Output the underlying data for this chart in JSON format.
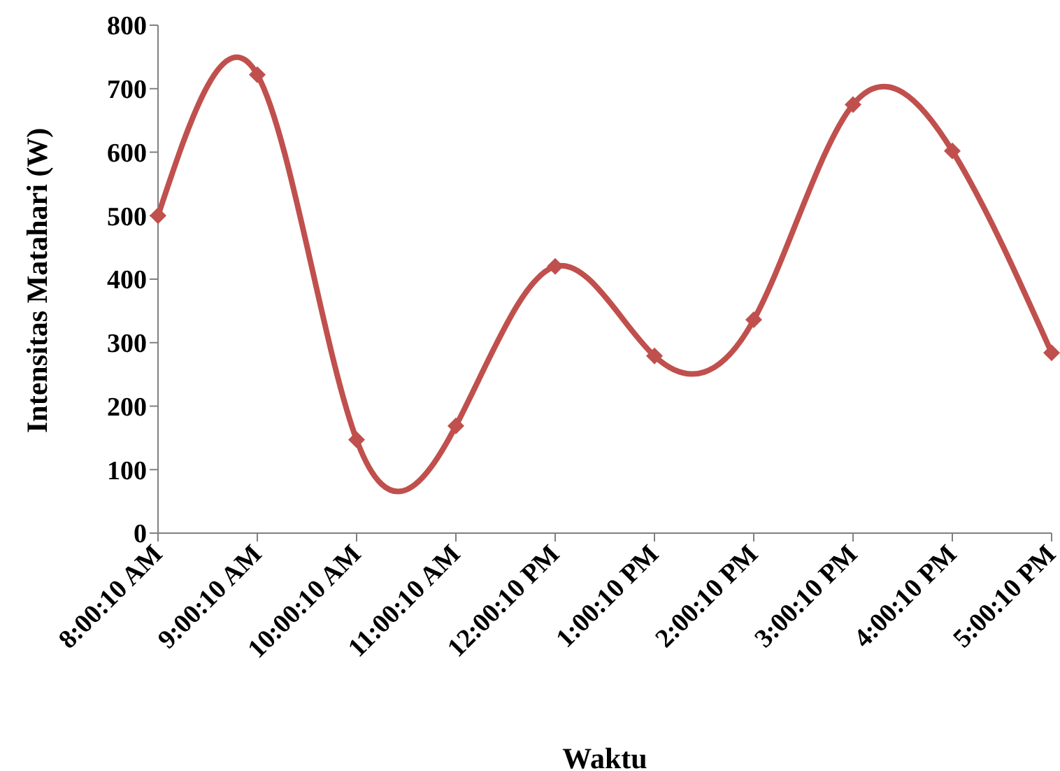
{
  "chart_data": {
    "type": "line",
    "xlabel": "Waktu",
    "ylabel": "Intensitas Matahari (W)",
    "categories": [
      "8:00:10 AM",
      "9:00:10 AM",
      "10:00:10 AM",
      "11:00:10 AM",
      "12:00:10 PM",
      "1:00:10 PM",
      "2:00:10 PM",
      "3:00:10 PM",
      "4:00:10 PM",
      "5:00:10 PM"
    ],
    "series": [
      {
        "color": "#c0504d",
        "values": [
          500,
          722,
          147,
          169,
          420,
          279,
          336,
          675,
          602,
          284
        ]
      }
    ],
    "ylim": [
      0,
      800
    ],
    "yticks": [
      0,
      100,
      200,
      300,
      400,
      500,
      600,
      700,
      800
    ],
    "grid": false,
    "legend": false,
    "marker": "diamond",
    "line_style": "solid"
  }
}
